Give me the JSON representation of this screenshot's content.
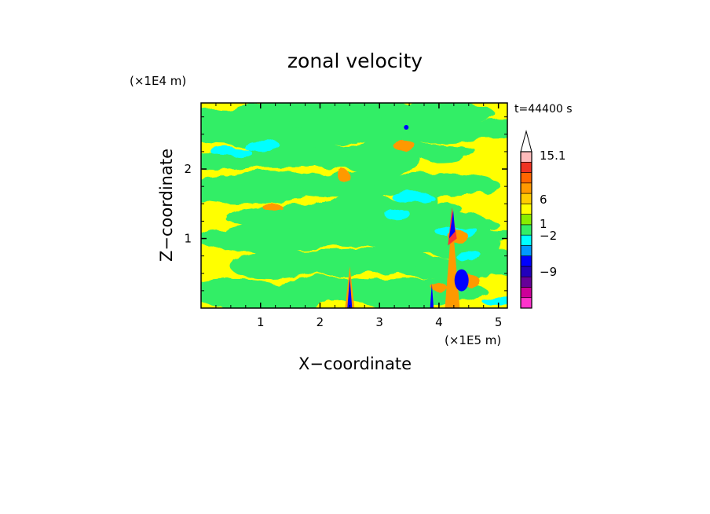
{
  "chart_data": {
    "type": "heatmap",
    "title": "zonal velocity",
    "xlabel": "X−coordinate",
    "ylabel": "Z−coordinate",
    "x_unit": "(×1E5 m)",
    "y_unit": "(×1E4 m)",
    "time_label": "t=44400 s",
    "xlim": [
      0,
      5.15
    ],
    "ylim": [
      0,
      2.95
    ],
    "x_ticks": [
      {
        "value": 1,
        "label": "1"
      },
      {
        "value": 2,
        "label": "2"
      },
      {
        "value": 3,
        "label": "3"
      },
      {
        "value": 4,
        "label": "4"
      },
      {
        "value": 5,
        "label": "5"
      }
    ],
    "y_ticks": [
      {
        "value": 1,
        "label": "1"
      },
      {
        "value": 2,
        "label": "2"
      }
    ],
    "colorbar": {
      "labels": [
        {
          "value": 15.1,
          "label": "15.1"
        },
        {
          "value": 6,
          "label": "6"
        },
        {
          "value": 1,
          "label": "1"
        },
        {
          "value": -2,
          "label": "−2"
        },
        {
          "value": -9,
          "label": "−9"
        }
      ],
      "colors": [
        {
          "level": "< -12",
          "color": "#ff33cc"
        },
        {
          "level": "-12 to -9",
          "color": "#cc0099"
        },
        {
          "level": "-9 to -6",
          "color": "#660099"
        },
        {
          "level": "-6 to -4",
          "color": "#2200bb"
        },
        {
          "level": "-4 to -2",
          "color": "#0000ff"
        },
        {
          "level": "-2 to -1",
          "color": "#0099ff"
        },
        {
          "level": "-1 to 0",
          "color": "#00ffff"
        },
        {
          "level": "0 to 0.5",
          "color": "#33ee66"
        },
        {
          "level": "0.5 to 1",
          "color": "#88ee00"
        },
        {
          "level": "1 to 2",
          "color": "#ffff00"
        },
        {
          "level": "2 to 3",
          "color": "#ffcc00"
        },
        {
          "level": "3 to 4",
          "color": "#ff9900"
        },
        {
          "level": "4 to 6",
          "color": "#ff6600"
        },
        {
          "level": "6 to 9",
          "color": "#ee3322"
        },
        {
          "level": "9 to 15.1",
          "color": "#ff3333"
        },
        {
          "level": "> 15.1",
          "color": "#ffbbbb"
        }
      ]
    },
    "field_colors": {
      "green": "#33ee66",
      "yellow": "#ffff00",
      "cyan": "#00ffff",
      "blue": "#0000ff",
      "orange": "#ff9900",
      "red": "#ff3333"
    }
  }
}
